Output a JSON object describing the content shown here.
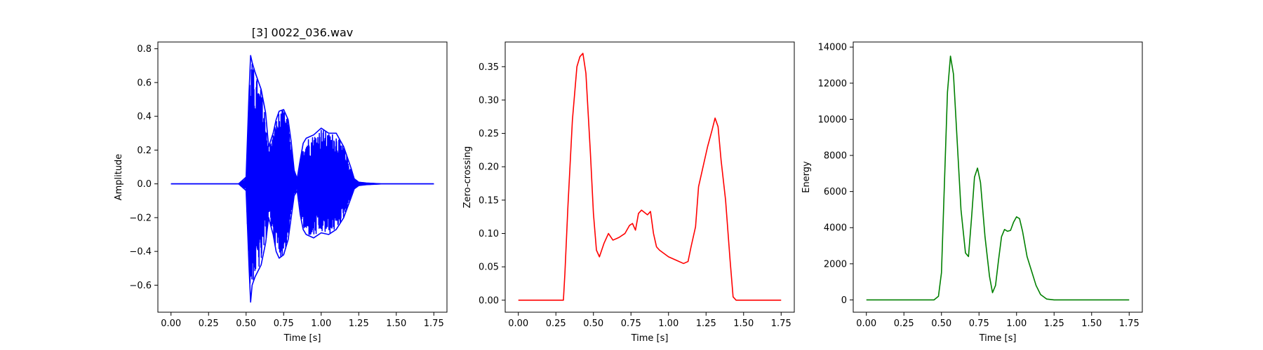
{
  "chart_data": [
    {
      "type": "line",
      "title": "[3] 0022_036.wav",
      "xlabel": "Time [s]",
      "ylabel": "Amplitude",
      "xlim": [
        -0.0875,
        1.8375
      ],
      "ylim": [
        -0.76,
        0.84
      ],
      "xticks": [
        0.0,
        0.25,
        0.5,
        0.75,
        1.0,
        1.25,
        1.5,
        1.75
      ],
      "xticklabels": [
        "0.00",
        "0.25",
        "0.50",
        "0.75",
        "1.00",
        "1.25",
        "1.50",
        "1.75"
      ],
      "yticks": [
        -0.6,
        -0.4,
        -0.2,
        0.0,
        0.2,
        0.4,
        0.6,
        0.8
      ],
      "yticklabels": [
        "−0.6",
        "−0.4",
        "−0.2",
        "0.0",
        "0.2",
        "0.4",
        "0.6",
        "0.8"
      ],
      "color": "#0000ff",
      "series": [
        {
          "name": "waveform",
          "x": [
            0.0,
            0.45,
            0.5,
            0.52,
            0.53,
            0.54,
            0.56,
            0.6,
            0.63,
            0.65,
            0.68,
            0.7,
            0.72,
            0.75,
            0.78,
            0.8,
            0.82,
            0.84,
            0.86,
            0.88,
            0.9,
            0.95,
            1.0,
            1.05,
            1.1,
            1.15,
            1.2,
            1.22,
            1.25,
            1.3,
            1.4,
            1.75
          ],
          "upper": [
            0.0,
            0.0,
            0.04,
            0.55,
            0.76,
            0.72,
            0.66,
            0.56,
            0.42,
            0.22,
            0.3,
            0.38,
            0.43,
            0.44,
            0.38,
            0.25,
            0.08,
            0.03,
            0.14,
            0.24,
            0.27,
            0.29,
            0.33,
            0.3,
            0.3,
            0.22,
            0.09,
            0.03,
            0.01,
            0.005,
            0.0,
            0.0
          ],
          "lower": [
            0.0,
            0.0,
            -0.04,
            -0.5,
            -0.7,
            -0.6,
            -0.55,
            -0.48,
            -0.35,
            -0.2,
            -0.3,
            -0.4,
            -0.44,
            -0.42,
            -0.33,
            -0.2,
            -0.07,
            -0.04,
            -0.18,
            -0.27,
            -0.3,
            -0.32,
            -0.29,
            -0.3,
            -0.27,
            -0.2,
            -0.08,
            -0.03,
            -0.01,
            -0.005,
            0.0,
            0.0
          ]
        }
      ]
    },
    {
      "type": "line",
      "title": "",
      "xlabel": "Time [s]",
      "ylabel": "Zero-crossing",
      "xlim": [
        -0.0875,
        1.8375
      ],
      "ylim": [
        -0.018,
        0.387
      ],
      "xticks": [
        0.0,
        0.25,
        0.5,
        0.75,
        1.0,
        1.25,
        1.5,
        1.75
      ],
      "xticklabels": [
        "0.00",
        "0.25",
        "0.50",
        "0.75",
        "1.00",
        "1.25",
        "1.50",
        "1.75"
      ],
      "yticks": [
        0.0,
        0.05,
        0.1,
        0.15,
        0.2,
        0.25,
        0.3,
        0.35
      ],
      "yticklabels": [
        "0.00",
        "0.05",
        "0.10",
        "0.15",
        "0.20",
        "0.25",
        "0.30",
        "0.35"
      ],
      "color": "#ff0000",
      "series": [
        {
          "name": "zero-crossing",
          "x": [
            0.0,
            0.3,
            0.31,
            0.33,
            0.36,
            0.39,
            0.41,
            0.43,
            0.45,
            0.48,
            0.5,
            0.52,
            0.54,
            0.57,
            0.6,
            0.63,
            0.67,
            0.71,
            0.74,
            0.76,
            0.78,
            0.8,
            0.82,
            0.86,
            0.88,
            0.9,
            0.92,
            0.94,
            0.97,
            1.0,
            1.05,
            1.1,
            1.13,
            1.15,
            1.18,
            1.2,
            1.23,
            1.26,
            1.29,
            1.31,
            1.33,
            1.35,
            1.38,
            1.41,
            1.43,
            1.45,
            1.75
          ],
          "y": [
            0.0,
            0.0,
            0.04,
            0.14,
            0.27,
            0.35,
            0.365,
            0.37,
            0.34,
            0.22,
            0.13,
            0.075,
            0.065,
            0.085,
            0.1,
            0.09,
            0.094,
            0.1,
            0.112,
            0.115,
            0.105,
            0.13,
            0.135,
            0.128,
            0.133,
            0.1,
            0.08,
            0.075,
            0.07,
            0.065,
            0.06,
            0.055,
            0.058,
            0.08,
            0.11,
            0.17,
            0.2,
            0.23,
            0.255,
            0.273,
            0.26,
            0.21,
            0.15,
            0.06,
            0.005,
            0.0,
            0.0
          ]
        }
      ]
    },
    {
      "type": "line",
      "title": "",
      "xlabel": "Time [s]",
      "ylabel": "Energy",
      "xlim": [
        -0.0875,
        1.8375
      ],
      "ylim": [
        -680,
        14280
      ],
      "xticks": [
        0.0,
        0.25,
        0.5,
        0.75,
        1.0,
        1.25,
        1.5,
        1.75
      ],
      "xticklabels": [
        "0.00",
        "0.25",
        "0.50",
        "0.75",
        "1.00",
        "1.25",
        "1.50",
        "1.75"
      ],
      "yticks": [
        0,
        2000,
        4000,
        6000,
        8000,
        10000,
        12000,
        14000
      ],
      "yticklabels": [
        "0",
        "2000",
        "4000",
        "6000",
        "8000",
        "10000",
        "12000",
        "14000"
      ],
      "color": "#008000",
      "series": [
        {
          "name": "energy",
          "x": [
            0.0,
            0.45,
            0.48,
            0.5,
            0.52,
            0.54,
            0.56,
            0.58,
            0.6,
            0.63,
            0.66,
            0.68,
            0.7,
            0.72,
            0.74,
            0.76,
            0.79,
            0.82,
            0.84,
            0.86,
            0.88,
            0.9,
            0.92,
            0.94,
            0.96,
            0.98,
            1.0,
            1.02,
            1.04,
            1.07,
            1.1,
            1.13,
            1.16,
            1.2,
            1.25,
            1.75
          ],
          "y": [
            0.0,
            0.0,
            200,
            1500,
            6500,
            11500,
            13500,
            12500,
            9500,
            5000,
            2600,
            2400,
            4500,
            6800,
            7300,
            6500,
            3500,
            1300,
            400,
            800,
            2200,
            3500,
            3900,
            3800,
            3850,
            4300,
            4600,
            4500,
            3800,
            2400,
            1600,
            800,
            300,
            50,
            0,
            0
          ]
        }
      ]
    }
  ]
}
